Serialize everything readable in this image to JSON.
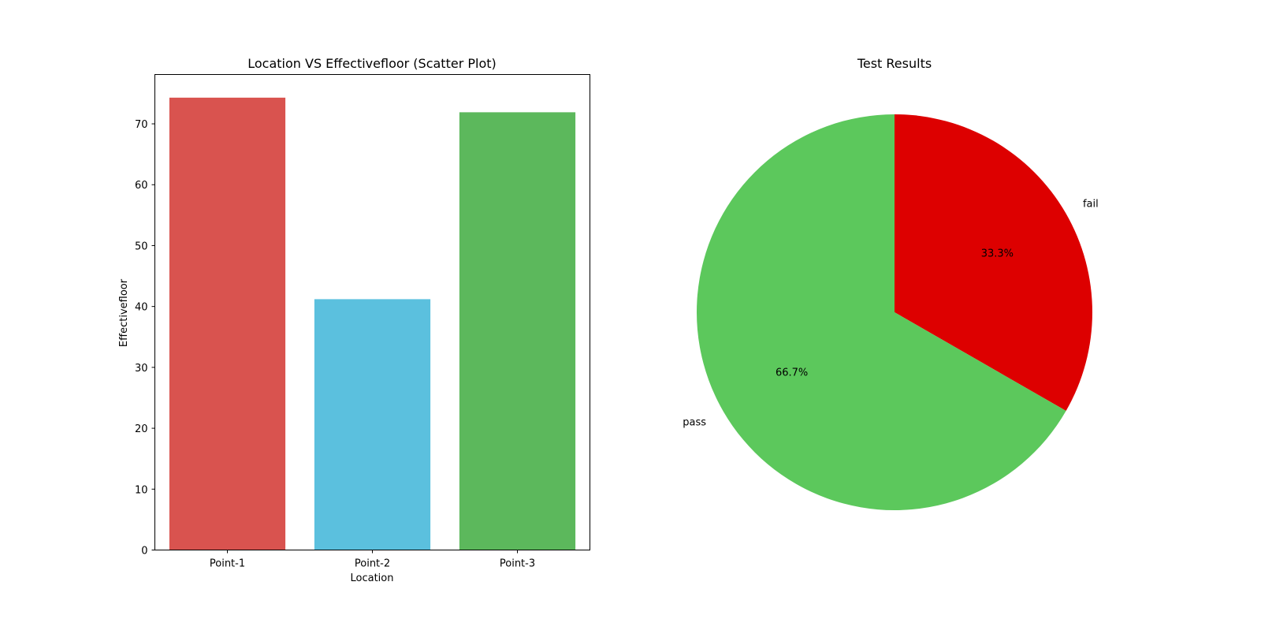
{
  "chart_data": [
    {
      "type": "bar",
      "title": "Location VS Effectivefloor (Scatter Plot)",
      "xlabel": "Location",
      "ylabel": "Effectivefloor",
      "categories": [
        "Point-1",
        "Point-2",
        "Point-3"
      ],
      "values": [
        74.3,
        41.2,
        71.9
      ],
      "colors": [
        "#d9534f",
        "#5bc0de",
        "#5cb85c"
      ],
      "ylim": [
        0,
        78.1
      ],
      "yticks": [
        0,
        10,
        20,
        30,
        40,
        50,
        60,
        70
      ],
      "ytick_labels": [
        "0",
        "10",
        "20",
        "30",
        "40",
        "50",
        "60",
        "70"
      ],
      "grid": false
    },
    {
      "type": "pie",
      "title": "Test Results",
      "labels": [
        "fail",
        "pass"
      ],
      "values": [
        33.3,
        66.7
      ],
      "percent_labels": [
        "33.3%",
        "66.7%"
      ],
      "colors": [
        "#dd0000",
        "#5cc85c"
      ],
      "start_angle_deg": 90,
      "direction": "clockwise"
    }
  ]
}
